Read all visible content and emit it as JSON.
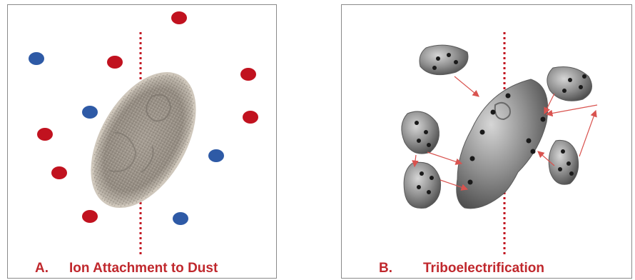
{
  "colors": {
    "positive_ion": "#c1121f",
    "negative_ion": "#2e5aa6",
    "divider": "#c1121f",
    "arrow": "#d9534f",
    "caption": "#c0282d",
    "dust_fill": "#9b948c",
    "particle_fill": "#8c8c8c"
  },
  "panel_a": {
    "letter": "A.",
    "caption": "Ion Attachment to Dust",
    "ions": [
      "positive",
      "negative",
      "positive",
      "positive",
      "negative",
      "positive",
      "positive",
      "negative",
      "positive",
      "positive",
      "negative"
    ]
  },
  "panel_b": {
    "letter": "B.",
    "caption": "Triboelectrification"
  }
}
